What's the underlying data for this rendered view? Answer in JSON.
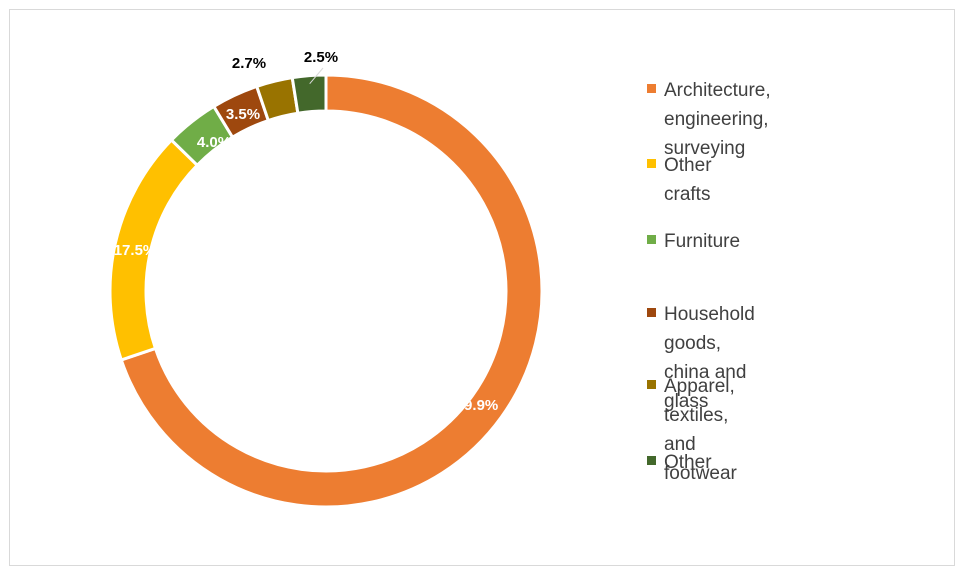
{
  "chart_data": {
    "type": "pie",
    "donut": true,
    "title": "",
    "categories": [
      "Architecture, engineering,\nsurveying",
      "Other crafts",
      "Furniture",
      "Household goods, china and\nglass",
      "Apparel, textiles, and\nfootwear",
      "Other"
    ],
    "values": [
      69.9,
      17.5,
      4.0,
      3.5,
      2.7,
      2.5
    ],
    "data_labels": [
      "69.9%",
      "17.5%",
      "4.0%",
      "3.5%",
      "2.7%",
      "2.5%"
    ],
    "colors": [
      "#ed7d31",
      "#ffc000",
      "#70ad47",
      "#9e480e",
      "#997300",
      "#43682b"
    ],
    "start": "top, clockwise",
    "legend_position": "right"
  }
}
